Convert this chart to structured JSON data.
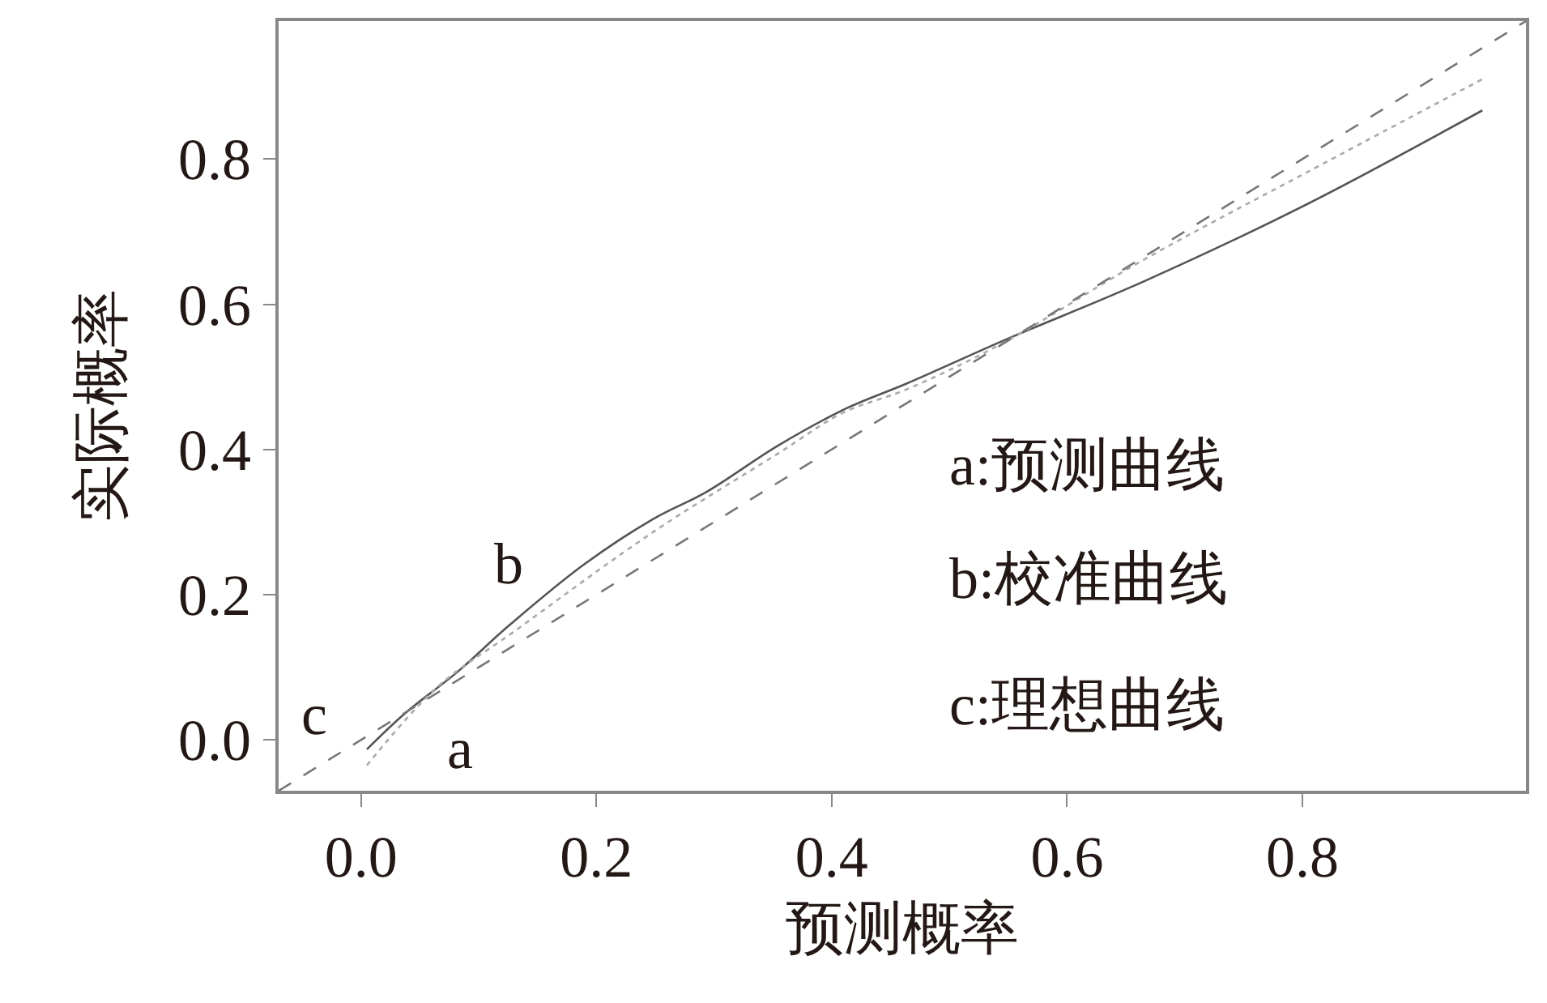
{
  "chart_data": {
    "type": "line",
    "xlabel": "预测概率",
    "ylabel": "实际概率",
    "series": [
      {
        "x": [
          0.005,
          0.037,
          0.083,
          0.124,
          0.189,
          0.248,
          0.294,
          0.354,
          0.413,
          0.464,
          0.546,
          0.666,
          0.803,
          0.953
        ],
        "values": [
          -0.013,
          0.036,
          0.095,
          0.155,
          0.241,
          0.304,
          0.342,
          0.405,
          0.457,
          0.491,
          0.55,
          0.632,
          0.737,
          0.867
        ],
        "color": "#555555",
        "line_style": "solid"
      },
      {
        "x": [
          0.005,
          0.065,
          0.129,
          0.248,
          0.354,
          0.409,
          0.464,
          0.546,
          0.666,
          0.803,
          0.953
        ],
        "values": [
          -0.035,
          0.073,
          0.148,
          0.286,
          0.394,
          0.45,
          0.483,
          0.547,
          0.662,
          0.781,
          0.91
        ],
        "color": "#aaaaaa",
        "line_style": "dotted"
      },
      {
        "x": [
          -0.07,
          0.99
        ],
        "values": [
          -0.07,
          0.99
        ],
        "color": "#777777",
        "line_style": "dashed"
      }
    ],
    "annotations": [
      "a",
      "b",
      "c",
      "a:预测曲线",
      "b:校准曲线",
      "c:理想曲线"
    ],
    "xlim": [
      -0.07,
      0.99
    ],
    "ylim": [
      -0.07,
      0.99
    ],
    "xticks": [
      {
        "value": 0,
        "label": "0.0"
      },
      0.2,
      0.4,
      0.6,
      0.8
    ],
    "yticks": [
      {
        "value": 0,
        "label": "0.0"
      },
      0.2,
      0.4,
      0.6,
      0.8
    ],
    "marker": "none"
  }
}
